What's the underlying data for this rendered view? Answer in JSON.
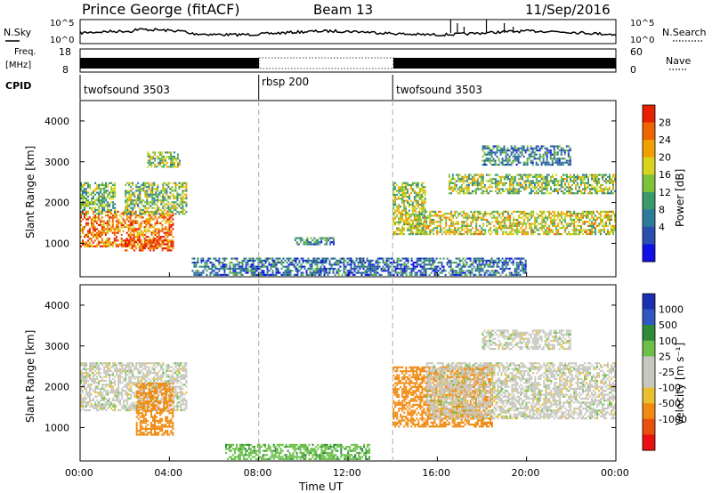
{
  "header": {
    "station": "Prince George (fitACF)",
    "beam": "Beam 13",
    "date": "11/Sep/2016"
  },
  "noise_panel": {
    "left_label": "N.Sky",
    "right_label": "N.Search",
    "left_ticks": [
      "10^5",
      "10^0"
    ],
    "right_ticks": [
      "10^5",
      "10^0"
    ]
  },
  "freq_panel": {
    "left_label_line1": "Freq.",
    "left_label_line2": "[MHz]",
    "right_label": "Nave",
    "left_ticks": [
      "18",
      "8"
    ],
    "right_ticks": [
      "60",
      "0"
    ]
  },
  "cpid_panel": {
    "label": "CPID",
    "segments": [
      {
        "name": "twofsound 3503",
        "start_hour": 0,
        "end_hour": 8
      },
      {
        "name": "rbsp 200",
        "start_hour": 8,
        "end_hour": 14
      },
      {
        "name": "twofsound 3503",
        "start_hour": 14,
        "end_hour": 24
      }
    ]
  },
  "axes": {
    "ylabel": "Slant Range [km]",
    "yticks": [
      "1000",
      "2000",
      "3000",
      "4000"
    ],
    "xticks": [
      "00:00",
      "04:00",
      "08:00",
      "12:00",
      "16:00",
      "20:00",
      "00:00"
    ],
    "xlabel": "Time UT"
  },
  "power_colorbar": {
    "label": "Power [dB]",
    "ticks": [
      "4",
      "8",
      "12",
      "16",
      "20",
      "24",
      "28"
    ],
    "colors": [
      "#1010e6",
      "#2a4fb0",
      "#2f7a9a",
      "#3c9a6a",
      "#7fc23a",
      "#d8d41e",
      "#f0a000",
      "#f06400",
      "#e62000"
    ]
  },
  "velocity_colorbar": {
    "label": "Velocity [m s⁻¹]",
    "ticks": [
      "1000",
      "500",
      "100",
      "25",
      "-25",
      "-100",
      "-500",
      "-1000"
    ],
    "colors": [
      "#1a30b0",
      "#2f58c0",
      "#2f8a3a",
      "#6cc04a",
      "#c8c8c0",
      "#c8c8c0",
      "#e8c030",
      "#f08a10",
      "#e85010",
      "#e81010"
    ]
  },
  "chart_data": {
    "type": "heatmap",
    "title": "Prince George (fitACF)",
    "xlabel": "Time UT",
    "ylabel": "Slant Range [km]",
    "xlim_hours": [
      0,
      24
    ],
    "ylim_km": [
      180,
      4500
    ],
    "panels": [
      {
        "quantity": "Power",
        "unit": "dB",
        "range": [
          0,
          30
        ],
        "echo_regions": [
          {
            "t0": 0.0,
            "t1": 4.2,
            "r0": 900,
            "r1": 1800,
            "level": 0.8
          },
          {
            "t0": 2.0,
            "t1": 4.2,
            "r0": 800,
            "r1": 1100,
            "level": 0.9
          },
          {
            "t0": 0.0,
            "t1": 1.6,
            "r0": 1700,
            "r1": 2500,
            "level": 0.45
          },
          {
            "t0": 2.0,
            "t1": 4.8,
            "r0": 1700,
            "r1": 2500,
            "level": 0.5
          },
          {
            "t0": 3.0,
            "t1": 4.5,
            "r0": 2850,
            "r1": 3250,
            "level": 0.5
          },
          {
            "t0": 9.6,
            "t1": 11.4,
            "r0": 950,
            "r1": 1150,
            "level": 0.3
          },
          {
            "t0": 14.0,
            "t1": 15.5,
            "r0": 1200,
            "r1": 2500,
            "level": 0.55
          },
          {
            "t0": 15.0,
            "t1": 24.0,
            "r0": 1200,
            "r1": 1800,
            "level": 0.6
          },
          {
            "t0": 16.5,
            "t1": 24.0,
            "r0": 2200,
            "r1": 2700,
            "level": 0.5
          },
          {
            "t0": 18.0,
            "t1": 22.0,
            "r0": 2900,
            "r1": 3400,
            "level": 0.3
          },
          {
            "t0": 5.0,
            "t1": 20.0,
            "r0": 200,
            "r1": 650,
            "level": 0.25
          }
        ]
      },
      {
        "quantity": "Velocity",
        "unit": "m s^-1",
        "range": [
          -1000,
          1000
        ],
        "echo_regions": [
          {
            "t0": 0.0,
            "t1": 4.8,
            "r0": 1400,
            "r1": 2600,
            "velocity": 0
          },
          {
            "t0": 2.5,
            "t1": 4.2,
            "r0": 800,
            "r1": 2100,
            "velocity": -300
          },
          {
            "t0": 14.0,
            "t1": 18.5,
            "r0": 1000,
            "r1": 2500,
            "velocity": -400
          },
          {
            "t0": 15.5,
            "t1": 24.0,
            "r0": 1200,
            "r1": 2600,
            "velocity": 0
          },
          {
            "t0": 6.5,
            "t1": 13.0,
            "r0": 200,
            "r1": 600,
            "velocity": 80
          },
          {
            "t0": 18.0,
            "t1": 22.0,
            "r0": 2900,
            "r1": 3400,
            "velocity": 0
          }
        ]
      }
    ]
  }
}
